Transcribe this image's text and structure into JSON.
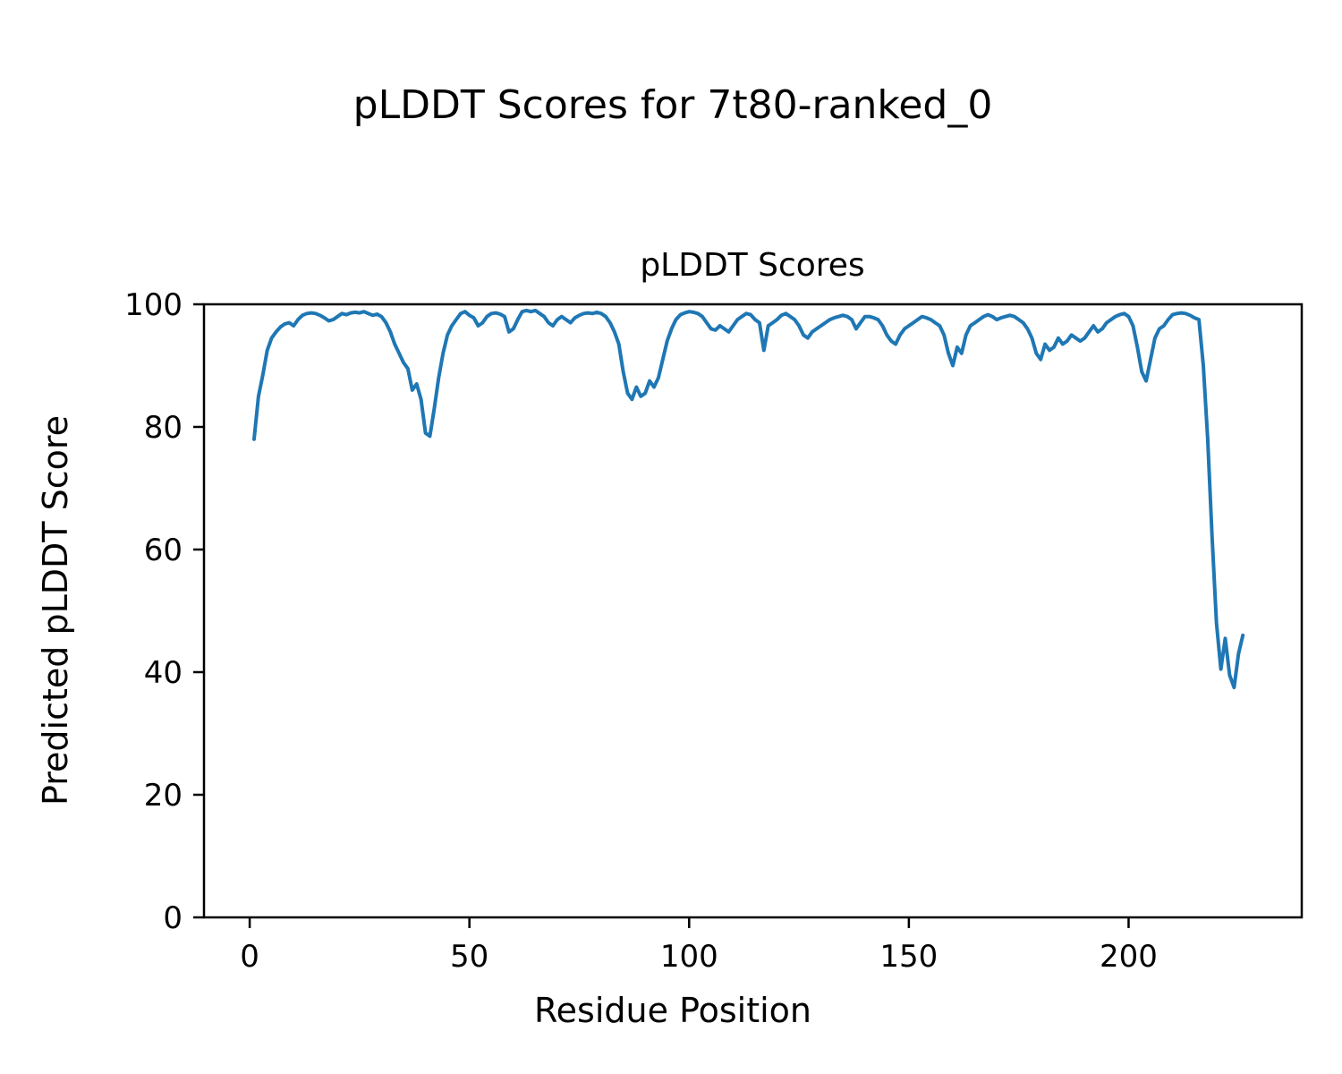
{
  "page": {
    "background": "#ffffff"
  },
  "suptitle": "pLDDT Scores for 7t80-ranked_0",
  "chart_data": {
    "type": "line",
    "title": "pLDDT Scores",
    "xlabel": "Residue Position",
    "ylabel": "Predicted pLDDT Score",
    "xlim": [
      -10.4,
      239.4
    ],
    "ylim": [
      0,
      100
    ],
    "xticks": [
      0,
      50,
      100,
      150,
      200
    ],
    "yticks": [
      0,
      20,
      40,
      60,
      80,
      100
    ],
    "grid": false,
    "legend": "none",
    "line_color": "#1f77b4",
    "line_width": 4,
    "series": [
      {
        "name": "pLDDT",
        "x_start": 1,
        "values": [
          78,
          85,
          88.5,
          92.5,
          94.5,
          95.5,
          96.3,
          96.8,
          97,
          96.5,
          97.5,
          98.2,
          98.5,
          98.6,
          98.5,
          98.2,
          97.8,
          97.3,
          97.5,
          98,
          98.5,
          98.3,
          98.6,
          98.7,
          98.6,
          98.8,
          98.5,
          98.2,
          98.4,
          98,
          97,
          95.5,
          93.5,
          92,
          90.5,
          89.5,
          86,
          87,
          84.5,
          79,
          78.5,
          83,
          88,
          92,
          95,
          96.5,
          97.5,
          98.5,
          98.8,
          98.2,
          97.8,
          96.5,
          97,
          98,
          98.5,
          98.6,
          98.4,
          98,
          95.5,
          96,
          97.5,
          98.8,
          99,
          98.8,
          99,
          98.5,
          98,
          97,
          96.5,
          97.5,
          98,
          97.5,
          97,
          97.8,
          98.2,
          98.5,
          98.6,
          98.5,
          98.7,
          98.5,
          98,
          97,
          95.5,
          93.5,
          89,
          85.5,
          84.5,
          86.5,
          85,
          85.5,
          87.5,
          86.5,
          88,
          91,
          94,
          96,
          97.5,
          98.3,
          98.6,
          98.8,
          98.7,
          98.5,
          98,
          97,
          96,
          95.8,
          96.5,
          96,
          95.5,
          96.5,
          97.5,
          98,
          98.5,
          98.3,
          97.5,
          97,
          92.5,
          96.5,
          97,
          97.5,
          98.2,
          98.5,
          98,
          97.5,
          96.5,
          95,
          94.5,
          95.5,
          96,
          96.5,
          97,
          97.5,
          97.8,
          98,
          98.2,
          98,
          97.5,
          96,
          97,
          98,
          98,
          97.8,
          97.5,
          96.5,
          95,
          94,
          93.5,
          95,
          96,
          96.5,
          97,
          97.5,
          98,
          97.8,
          97.5,
          97,
          96.5,
          95,
          92,
          90,
          93,
          92,
          95,
          96.5,
          97,
          97.5,
          98,
          98.3,
          98,
          97.5,
          97.8,
          98,
          98.2,
          98,
          97.5,
          97,
          96,
          94.5,
          92,
          91,
          93.5,
          92.5,
          93,
          94.5,
          93.5,
          94,
          95,
          94.5,
          94,
          94.5,
          95.5,
          96.5,
          95.5,
          96,
          97,
          97.5,
          98,
          98.3,
          98.5,
          98,
          96.5,
          93,
          89,
          87.5,
          91,
          94.5,
          96,
          96.5,
          97.5,
          98.3,
          98.5,
          98.6,
          98.5,
          98.2,
          97.8,
          97.5,
          90,
          78,
          62,
          48,
          40.5,
          45.5,
          39.5,
          37.5,
          43,
          46
        ]
      }
    ]
  }
}
